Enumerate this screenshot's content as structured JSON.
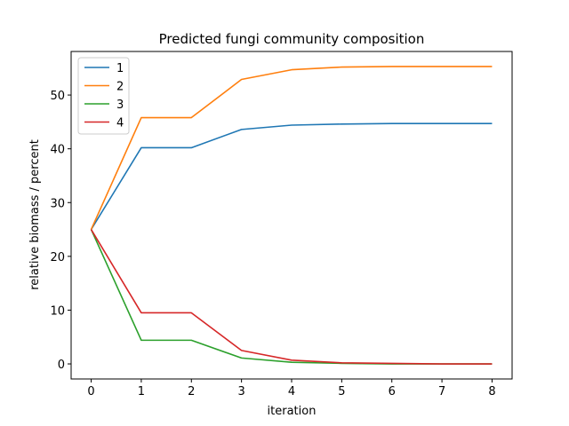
{
  "chart_data": {
    "type": "line",
    "title": "Predicted fungi community composition",
    "xlabel": "iteration",
    "ylabel": "relative biomass / percent",
    "x": [
      0,
      1,
      2,
      3,
      4,
      5,
      6,
      7,
      8
    ],
    "xticks": [
      0,
      1,
      2,
      3,
      4,
      5,
      6,
      7,
      8
    ],
    "yticks": [
      0,
      10,
      20,
      30,
      40,
      50
    ],
    "xlim": [
      -0.4,
      8.4
    ],
    "ylim": [
      -2.8,
      58.1
    ],
    "grid": false,
    "legend_position": "top-left",
    "series": [
      {
        "name": "1",
        "color": "#1f77b4",
        "values": [
          25.0,
          40.2,
          40.2,
          43.6,
          44.4,
          44.6,
          44.7,
          44.7,
          44.7
        ]
      },
      {
        "name": "2",
        "color": "#ff7f0e",
        "values": [
          25.0,
          45.8,
          45.8,
          52.9,
          54.7,
          55.2,
          55.3,
          55.3,
          55.3
        ]
      },
      {
        "name": "3",
        "color": "#2ca02c",
        "values": [
          25.0,
          4.4,
          4.4,
          1.1,
          0.3,
          0.1,
          0.0,
          0.0,
          0.0
        ]
      },
      {
        "name": "4",
        "color": "#d62728",
        "values": [
          25.0,
          9.5,
          9.5,
          2.5,
          0.7,
          0.2,
          0.1,
          0.0,
          0.0
        ]
      }
    ]
  }
}
